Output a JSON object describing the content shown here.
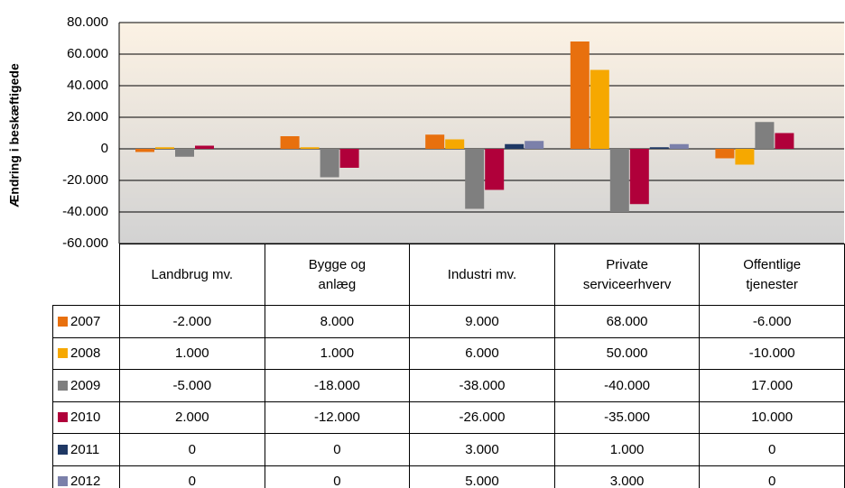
{
  "chart_data": {
    "type": "bar",
    "y_label": "Ændring i beskæftigede",
    "categories": [
      "Landbrug mv.",
      "Bygge og anlæg",
      "Industri mv.",
      "Private serviceerhverv",
      "Offentlige tjenester"
    ],
    "series": [
      {
        "name": "2007",
        "color": "#e8700e",
        "values": [
          -2000,
          8000,
          9000,
          68000,
          -6000
        ],
        "value_labels": [
          "-2.000",
          "8.000",
          "9.000",
          "68.000",
          "-6.000"
        ]
      },
      {
        "name": "2008",
        "color": "#f6a800",
        "values": [
          1000,
          1000,
          6000,
          50000,
          -10000
        ],
        "value_labels": [
          "1.000",
          "1.000",
          "6.000",
          "50.000",
          "-10.000"
        ]
      },
      {
        "name": "2009",
        "color": "#7f7f7f",
        "values": [
          -5000,
          -18000,
          -38000,
          -40000,
          17000
        ],
        "value_labels": [
          "-5.000",
          "-18.000",
          "-38.000",
          "-40.000",
          "17.000"
        ]
      },
      {
        "name": "2010",
        "color": "#b0003a",
        "values": [
          2000,
          -12000,
          -26000,
          -35000,
          10000
        ],
        "value_labels": [
          "2.000",
          "-12.000",
          "-26.000",
          "-35.000",
          "10.000"
        ]
      },
      {
        "name": "2011",
        "color": "#1f3864",
        "values": [
          0,
          0,
          3000,
          1000,
          0
        ],
        "value_labels": [
          "0",
          "0",
          "3.000",
          "1.000",
          "0"
        ]
      },
      {
        "name": "2012",
        "color": "#7b80aa",
        "values": [
          0,
          0,
          5000,
          3000,
          0
        ],
        "value_labels": [
          "0",
          "0",
          "5.000",
          "3.000",
          "0"
        ]
      }
    ],
    "ylim": [
      -60000,
      80000
    ],
    "yticks": [
      {
        "value": -60000,
        "label": "-60.000"
      },
      {
        "value": -40000,
        "label": "-40.000"
      },
      {
        "value": -20000,
        "label": "-20.000"
      },
      0,
      {
        "value": 20000,
        "label": "20.000"
      },
      {
        "value": 40000,
        "label": "40.000"
      },
      {
        "value": 60000,
        "label": "60.000"
      },
      {
        "value": 80000,
        "label": "80.000"
      }
    ],
    "grid": true
  }
}
